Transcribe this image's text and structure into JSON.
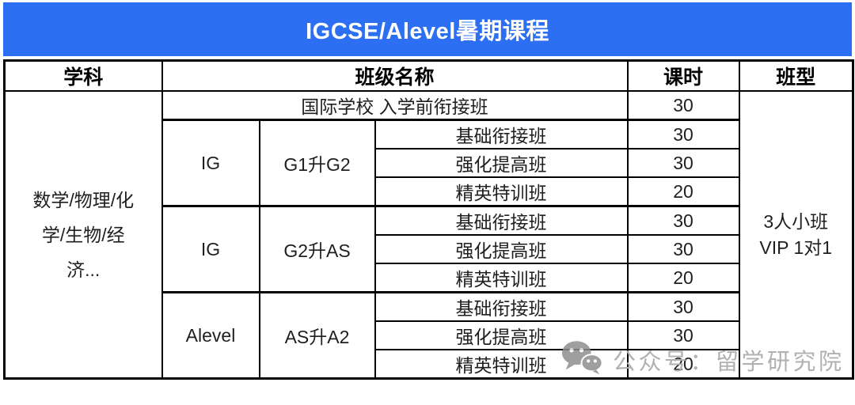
{
  "title_bar": {
    "text": "IGCSE/Alevel暑期课程"
  },
  "table": {
    "header": {
      "subject": "学科",
      "class_name": "班级名称",
      "hours": "课时",
      "class_type": "班型"
    },
    "subject_lines": [
      "数学/物理/化",
      "学/生物/经",
      "济..."
    ],
    "class_type_lines": [
      "3人小班",
      "VIP 1对1"
    ],
    "intro_row": {
      "name": "国际学校 入学前衔接班",
      "hours": "30"
    },
    "groups": [
      {
        "level": "IG",
        "transition": "G1升G2",
        "classes": [
          {
            "name": "基础衔接班",
            "hours": "30"
          },
          {
            "name": "强化提高班",
            "hours": "30"
          },
          {
            "name": "精英特训班",
            "hours": "20"
          }
        ]
      },
      {
        "level": "IG",
        "transition": "G2升AS",
        "classes": [
          {
            "name": "基础衔接班",
            "hours": "30"
          },
          {
            "name": "强化提高班",
            "hours": "30"
          },
          {
            "name": "精英特训班",
            "hours": "20"
          }
        ]
      },
      {
        "level": "Alevel",
        "transition": "AS升A2",
        "classes": [
          {
            "name": "基础衔接班",
            "hours": "30"
          },
          {
            "name": "强化提高班",
            "hours": "30"
          },
          {
            "name": "精英特训班",
            "hours": "20"
          }
        ]
      }
    ]
  },
  "watermark": {
    "icon": "wechat-icon",
    "text": "公众号：留学研究院"
  },
  "colors": {
    "title_bar_bg": "#2C6FF2",
    "title_text": "#FFFFFF",
    "subject_bg": "#FDF5DE",
    "border": "#000000",
    "body_text": "#1F1F1F",
    "watermark": "#B2B0B0"
  }
}
